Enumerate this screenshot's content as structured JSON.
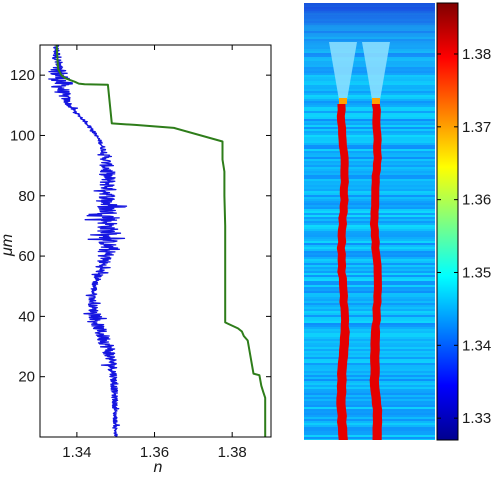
{
  "chart_data": [
    {
      "type": "line",
      "xlabel": "n",
      "ylabel": "μm",
      "xlim": [
        1.3305,
        1.39
      ],
      "ylim": [
        0,
        130
      ],
      "xticks": [
        1.34,
        1.36,
        1.38
      ],
      "yticks": [
        20,
        40,
        60,
        80,
        100,
        120
      ],
      "xtick_labels": [
        "1.34",
        "1.36",
        "1.38"
      ],
      "ytick_labels": [
        "20",
        "40",
        "60",
        "80",
        "100",
        "120"
      ],
      "grid": false,
      "legend": "none",
      "series": [
        {
          "color": "#1515e0",
          "style": "noisy",
          "x": [
            1.3345,
            1.335,
            1.3348,
            1.3355,
            1.336,
            1.336,
            1.3372,
            1.338,
            1.3395,
            1.341,
            1.3425,
            1.344,
            1.345,
            1.346,
            1.347,
            1.3475,
            1.3478,
            1.348,
            1.348,
            1.348,
            1.348,
            1.348,
            1.3475,
            1.346,
            1.3445,
            1.344,
            1.3445,
            1.346,
            1.348,
            1.349,
            1.3495,
            1.3498,
            1.35
          ],
          "y": [
            130,
            125,
            122,
            120,
            117,
            115,
            112,
            110,
            108,
            106,
            104,
            102,
            100,
            98,
            95,
            92,
            88,
            84,
            80,
            75,
            70,
            65,
            60,
            55,
            50,
            45,
            40,
            35,
            30,
            25,
            20,
            10,
            0
          ],
          "amplitude": [
            0.0008,
            0.0012,
            0.0018,
            0.003,
            0.003,
            0.0022,
            0.0012,
            0.0008,
            0.0005,
            0.0004,
            0.0004,
            0.0004,
            0.0004,
            0.0005,
            0.0008,
            0.0015,
            0.002,
            0.0022,
            0.0022,
            0.0028,
            0.0028,
            0.0025,
            0.0022,
            0.0012,
            0.0008,
            0.001,
            0.0014,
            0.0018,
            0.002,
            0.0014,
            0.001,
            0.0006,
            0.0004
          ]
        },
        {
          "color": "#2e7d1a",
          "style": "line",
          "x": [
            1.3348,
            1.335,
            1.3352,
            1.336,
            1.337,
            1.338,
            1.3395,
            1.3405,
            1.342,
            1.348,
            1.349,
            1.355,
            1.365,
            1.3775,
            1.3775,
            1.378,
            1.378,
            1.3782,
            1.3782,
            1.379,
            1.3815,
            1.3825,
            1.383,
            1.384,
            1.3855,
            1.387,
            1.3875,
            1.388,
            1.3885,
            1.3885
          ],
          "y": [
            130,
            125,
            122,
            120,
            119,
            118.5,
            117.8,
            117.2,
            117.0,
            116.8,
            104,
            103.5,
            102.5,
            98,
            92,
            88,
            80,
            70,
            38,
            37.5,
            36,
            35,
            33.5,
            32,
            21,
            20.5,
            17,
            15,
            13,
            0
          ]
        }
      ]
    },
    {
      "type": "heatmap",
      "colorbar_min": 1.327,
      "colorbar_max": 1.387,
      "colorbar_ticks": [
        1.33,
        1.34,
        1.35,
        1.36,
        1.37,
        1.38
      ],
      "colorbar_tick_labels": [
        "1.33",
        "1.34",
        "1.35",
        "1.36",
        "1.37",
        "1.38"
      ],
      "background_value": 1.345,
      "waveguides": [
        {
          "core_value": 1.381,
          "neck_value": 1.37
        },
        {
          "core_value": 1.381,
          "neck_value": 1.37
        }
      ]
    }
  ]
}
